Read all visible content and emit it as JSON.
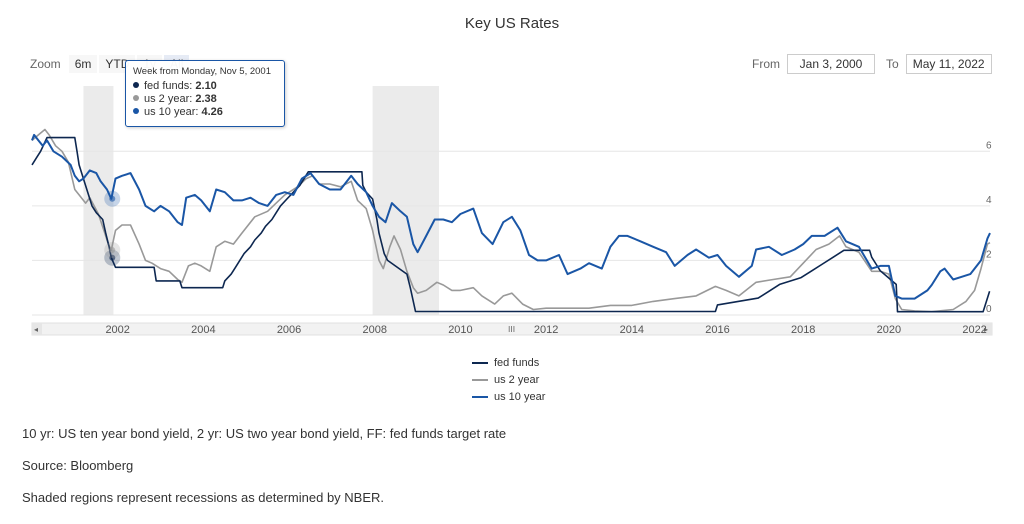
{
  "page": {
    "title": "Key US Rates",
    "zoom": {
      "label": "Zoom",
      "buttons": [
        "6m",
        "YTD",
        "1y",
        "All"
      ],
      "active": "All"
    },
    "range": {
      "from_label": "From",
      "from_value": "Jan 3, 2000",
      "to_label": "To",
      "to_value": "May 11, 2022"
    },
    "tooltip": {
      "header": "Week from Monday, Nov 5, 2001",
      "rows": [
        {
          "name": "fed funds",
          "value": "2.10",
          "color": "#0d2750"
        },
        {
          "name": "us 2 year",
          "value": "2.38",
          "color": "#999999"
        },
        {
          "name": "us 10 year",
          "value": "4.26",
          "color": "#1a56a6"
        }
      ]
    },
    "notes": [
      "10 yr: US ten year bond yield, 2 yr: US two year bond yield, FF: fed funds target rate",
      "Source: Bloomberg",
      "Shaded regions represent recessions as determined by NBER."
    ]
  },
  "chart_data": {
    "type": "line",
    "title": "Key US Rates",
    "xlabel": "",
    "ylabel": "",
    "xlim": [
      2000.0,
      2022.36
    ],
    "ylim": [
      0,
      7
    ],
    "x_ticks": [
      2002,
      2004,
      2006,
      2008,
      2010,
      2012,
      2014,
      2016,
      2018,
      2020,
      2022
    ],
    "y_ticks": [
      0,
      2,
      4,
      6
    ],
    "grid": true,
    "legend": "bottom-center",
    "recessions": [
      [
        2001.2,
        2001.9
      ],
      [
        2007.95,
        2009.5
      ]
    ],
    "colors": {
      "fed funds": "#0d2750",
      "us 2 year": "#999999",
      "us 10 year": "#1a56a6"
    },
    "series": [
      {
        "name": "fed funds",
        "points": [
          [
            2000.0,
            5.5
          ],
          [
            2000.1,
            5.75
          ],
          [
            2000.2,
            6.0
          ],
          [
            2000.35,
            6.5
          ],
          [
            2001.0,
            6.5
          ],
          [
            2001.05,
            6.0
          ],
          [
            2001.1,
            5.5
          ],
          [
            2001.2,
            5.0
          ],
          [
            2001.3,
            4.5
          ],
          [
            2001.4,
            4.0
          ],
          [
            2001.5,
            3.75
          ],
          [
            2001.65,
            3.5
          ],
          [
            2001.72,
            3.0
          ],
          [
            2001.8,
            2.5
          ],
          [
            2001.85,
            2.1
          ],
          [
            2001.95,
            1.75
          ],
          [
            2002.85,
            1.75
          ],
          [
            2002.9,
            1.25
          ],
          [
            2003.45,
            1.25
          ],
          [
            2003.5,
            1.0
          ],
          [
            2004.45,
            1.0
          ],
          [
            2004.5,
            1.25
          ],
          [
            2004.65,
            1.5
          ],
          [
            2004.75,
            1.75
          ],
          [
            2004.85,
            2.0
          ],
          [
            2004.95,
            2.25
          ],
          [
            2005.1,
            2.5
          ],
          [
            2005.2,
            2.75
          ],
          [
            2005.35,
            3.0
          ],
          [
            2005.45,
            3.25
          ],
          [
            2005.6,
            3.5
          ],
          [
            2005.7,
            3.75
          ],
          [
            2005.8,
            4.0
          ],
          [
            2005.95,
            4.25
          ],
          [
            2006.1,
            4.5
          ],
          [
            2006.25,
            4.75
          ],
          [
            2006.35,
            5.0
          ],
          [
            2006.45,
            5.25
          ],
          [
            2007.7,
            5.25
          ],
          [
            2007.72,
            4.75
          ],
          [
            2007.8,
            4.5
          ],
          [
            2007.95,
            4.25
          ],
          [
            2008.05,
            3.5
          ],
          [
            2008.1,
            3.0
          ],
          [
            2008.22,
            2.25
          ],
          [
            2008.3,
            2.0
          ],
          [
            2008.75,
            1.5
          ],
          [
            2008.83,
            1.0
          ],
          [
            2008.95,
            0.13
          ],
          [
            2015.95,
            0.13
          ],
          [
            2016.0,
            0.37
          ],
          [
            2016.95,
            0.62
          ],
          [
            2017.2,
            0.87
          ],
          [
            2017.45,
            1.12
          ],
          [
            2017.95,
            1.37
          ],
          [
            2018.2,
            1.62
          ],
          [
            2018.45,
            1.87
          ],
          [
            2018.7,
            2.12
          ],
          [
            2018.95,
            2.37
          ],
          [
            2019.55,
            2.37
          ],
          [
            2019.6,
            2.12
          ],
          [
            2019.7,
            1.87
          ],
          [
            2019.8,
            1.62
          ],
          [
            2020.17,
            1.12
          ],
          [
            2020.2,
            0.12
          ],
          [
            2022.2,
            0.12
          ],
          [
            2022.25,
            0.37
          ],
          [
            2022.35,
            0.87
          ]
        ]
      },
      {
        "name": "us 2 year",
        "points": [
          [
            2000.0,
            6.4
          ],
          [
            2000.15,
            6.6
          ],
          [
            2000.3,
            6.8
          ],
          [
            2000.4,
            6.6
          ],
          [
            2000.55,
            6.2
          ],
          [
            2000.7,
            6.0
          ],
          [
            2000.85,
            5.6
          ],
          [
            2001.0,
            4.6
          ],
          [
            2001.1,
            4.4
          ],
          [
            2001.25,
            4.1
          ],
          [
            2001.35,
            4.3
          ],
          [
            2001.45,
            4.0
          ],
          [
            2001.55,
            3.7
          ],
          [
            2001.7,
            3.0
          ],
          [
            2001.78,
            2.6
          ],
          [
            2001.85,
            2.38
          ],
          [
            2001.95,
            3.1
          ],
          [
            2002.1,
            3.3
          ],
          [
            2002.3,
            3.3
          ],
          [
            2002.5,
            2.6
          ],
          [
            2002.65,
            2.0
          ],
          [
            2002.8,
            1.9
          ],
          [
            2003.0,
            1.7
          ],
          [
            2003.2,
            1.6
          ],
          [
            2003.4,
            1.3
          ],
          [
            2003.5,
            1.2
          ],
          [
            2003.65,
            1.8
          ],
          [
            2003.8,
            1.9
          ],
          [
            2003.95,
            1.8
          ],
          [
            2004.15,
            1.6
          ],
          [
            2004.3,
            2.5
          ],
          [
            2004.5,
            2.7
          ],
          [
            2004.7,
            2.6
          ],
          [
            2004.9,
            3.0
          ],
          [
            2005.2,
            3.6
          ],
          [
            2005.5,
            3.8
          ],
          [
            2005.7,
            4.1
          ],
          [
            2005.9,
            4.4
          ],
          [
            2006.2,
            4.7
          ],
          [
            2006.4,
            5.0
          ],
          [
            2006.55,
            5.1
          ],
          [
            2006.7,
            4.8
          ],
          [
            2006.95,
            4.8
          ],
          [
            2007.2,
            4.7
          ],
          [
            2007.45,
            4.9
          ],
          [
            2007.6,
            4.2
          ],
          [
            2007.8,
            3.9
          ],
          [
            2007.95,
            3.1
          ],
          [
            2008.1,
            2.0
          ],
          [
            2008.2,
            1.7
          ],
          [
            2008.35,
            2.5
          ],
          [
            2008.45,
            2.9
          ],
          [
            2008.6,
            2.4
          ],
          [
            2008.75,
            1.6
          ],
          [
            2008.9,
            1.0
          ],
          [
            2009.0,
            0.8
          ],
          [
            2009.2,
            0.9
          ],
          [
            2009.45,
            1.2
          ],
          [
            2009.6,
            1.1
          ],
          [
            2009.8,
            0.9
          ],
          [
            2010.0,
            0.9
          ],
          [
            2010.3,
            1.0
          ],
          [
            2010.5,
            0.7
          ],
          [
            2010.8,
            0.4
          ],
          [
            2011.0,
            0.7
          ],
          [
            2011.2,
            0.8
          ],
          [
            2011.45,
            0.4
          ],
          [
            2011.7,
            0.2
          ],
          [
            2012.0,
            0.25
          ],
          [
            2012.5,
            0.25
          ],
          [
            2013.0,
            0.25
          ],
          [
            2013.5,
            0.35
          ],
          [
            2014.0,
            0.35
          ],
          [
            2014.5,
            0.5
          ],
          [
            2015.0,
            0.6
          ],
          [
            2015.5,
            0.7
          ],
          [
            2015.95,
            1.05
          ],
          [
            2016.2,
            0.9
          ],
          [
            2016.5,
            0.7
          ],
          [
            2016.9,
            1.2
          ],
          [
            2017.3,
            1.3
          ],
          [
            2017.7,
            1.4
          ],
          [
            2018.0,
            1.9
          ],
          [
            2018.3,
            2.4
          ],
          [
            2018.6,
            2.6
          ],
          [
            2018.85,
            2.9
          ],
          [
            2019.0,
            2.5
          ],
          [
            2019.3,
            2.3
          ],
          [
            2019.6,
            1.6
          ],
          [
            2019.8,
            1.6
          ],
          [
            2020.0,
            1.5
          ],
          [
            2020.15,
            0.6
          ],
          [
            2020.3,
            0.2
          ],
          [
            2020.6,
            0.15
          ],
          [
            2021.0,
            0.12
          ],
          [
            2021.5,
            0.2
          ],
          [
            2021.8,
            0.5
          ],
          [
            2022.0,
            0.9
          ],
          [
            2022.15,
            1.7
          ],
          [
            2022.3,
            2.6
          ],
          [
            2022.36,
            2.65
          ]
        ]
      },
      {
        "name": "us 10 year",
        "points": [
          [
            2000.0,
            6.4
          ],
          [
            2000.05,
            6.6
          ],
          [
            2000.15,
            6.4
          ],
          [
            2000.25,
            6.2
          ],
          [
            2000.35,
            6.4
          ],
          [
            2000.5,
            6.0
          ],
          [
            2000.7,
            5.8
          ],
          [
            2000.9,
            5.5
          ],
          [
            2001.0,
            5.1
          ],
          [
            2001.1,
            4.9
          ],
          [
            2001.2,
            5.0
          ],
          [
            2001.35,
            5.3
          ],
          [
            2001.5,
            5.2
          ],
          [
            2001.6,
            4.9
          ],
          [
            2001.75,
            4.6
          ],
          [
            2001.85,
            4.26
          ],
          [
            2001.95,
            5.0
          ],
          [
            2002.1,
            5.1
          ],
          [
            2002.3,
            5.2
          ],
          [
            2002.5,
            4.6
          ],
          [
            2002.65,
            4.0
          ],
          [
            2002.85,
            3.8
          ],
          [
            2003.0,
            4.0
          ],
          [
            2003.2,
            3.8
          ],
          [
            2003.4,
            3.4
          ],
          [
            2003.5,
            3.3
          ],
          [
            2003.6,
            4.3
          ],
          [
            2003.8,
            4.4
          ],
          [
            2003.95,
            4.2
          ],
          [
            2004.15,
            3.8
          ],
          [
            2004.3,
            4.6
          ],
          [
            2004.5,
            4.5
          ],
          [
            2004.7,
            4.2
          ],
          [
            2004.9,
            4.2
          ],
          [
            2005.1,
            4.3
          ],
          [
            2005.3,
            4.1
          ],
          [
            2005.5,
            4.0
          ],
          [
            2005.7,
            4.4
          ],
          [
            2005.9,
            4.5
          ],
          [
            2006.1,
            4.4
          ],
          [
            2006.3,
            5.0
          ],
          [
            2006.5,
            5.2
          ],
          [
            2006.7,
            4.8
          ],
          [
            2006.95,
            4.6
          ],
          [
            2007.2,
            4.6
          ],
          [
            2007.45,
            5.1
          ],
          [
            2007.6,
            4.8
          ],
          [
            2007.8,
            4.5
          ],
          [
            2007.95,
            4.0
          ],
          [
            2008.1,
            3.6
          ],
          [
            2008.25,
            3.4
          ],
          [
            2008.4,
            4.1
          ],
          [
            2008.6,
            3.8
          ],
          [
            2008.75,
            3.6
          ],
          [
            2008.9,
            2.6
          ],
          [
            2009.0,
            2.3
          ],
          [
            2009.2,
            2.9
          ],
          [
            2009.4,
            3.5
          ],
          [
            2009.6,
            3.5
          ],
          [
            2009.8,
            3.4
          ],
          [
            2010.0,
            3.7
          ],
          [
            2010.3,
            3.9
          ],
          [
            2010.5,
            3.0
          ],
          [
            2010.75,
            2.6
          ],
          [
            2011.0,
            3.4
          ],
          [
            2011.2,
            3.6
          ],
          [
            2011.4,
            3.1
          ],
          [
            2011.6,
            2.2
          ],
          [
            2011.8,
            2.0
          ],
          [
            2012.0,
            2.0
          ],
          [
            2012.3,
            2.2
          ],
          [
            2012.5,
            1.5
          ],
          [
            2012.8,
            1.7
          ],
          [
            2013.0,
            1.9
          ],
          [
            2013.3,
            1.7
          ],
          [
            2013.5,
            2.5
          ],
          [
            2013.7,
            2.9
          ],
          [
            2013.9,
            2.9
          ],
          [
            2014.2,
            2.7
          ],
          [
            2014.5,
            2.5
          ],
          [
            2014.8,
            2.3
          ],
          [
            2015.0,
            1.8
          ],
          [
            2015.3,
            2.2
          ],
          [
            2015.5,
            2.4
          ],
          [
            2015.8,
            2.1
          ],
          [
            2016.0,
            2.2
          ],
          [
            2016.2,
            1.8
          ],
          [
            2016.5,
            1.4
          ],
          [
            2016.8,
            1.8
          ],
          [
            2016.9,
            2.4
          ],
          [
            2017.2,
            2.5
          ],
          [
            2017.5,
            2.2
          ],
          [
            2017.8,
            2.4
          ],
          [
            2018.0,
            2.6
          ],
          [
            2018.2,
            2.9
          ],
          [
            2018.5,
            2.9
          ],
          [
            2018.8,
            3.2
          ],
          [
            2019.0,
            2.7
          ],
          [
            2019.3,
            2.5
          ],
          [
            2019.6,
            1.7
          ],
          [
            2019.8,
            1.8
          ],
          [
            2020.0,
            1.8
          ],
          [
            2020.15,
            0.7
          ],
          [
            2020.3,
            0.6
          ],
          [
            2020.6,
            0.6
          ],
          [
            2020.9,
            0.9
          ],
          [
            2021.0,
            1.1
          ],
          [
            2021.2,
            1.6
          ],
          [
            2021.3,
            1.7
          ],
          [
            2021.5,
            1.3
          ],
          [
            2021.7,
            1.4
          ],
          [
            2021.9,
            1.5
          ],
          [
            2022.0,
            1.7
          ],
          [
            2022.15,
            2.0
          ],
          [
            2022.3,
            2.8
          ],
          [
            2022.36,
            3.0
          ]
        ]
      }
    ]
  }
}
